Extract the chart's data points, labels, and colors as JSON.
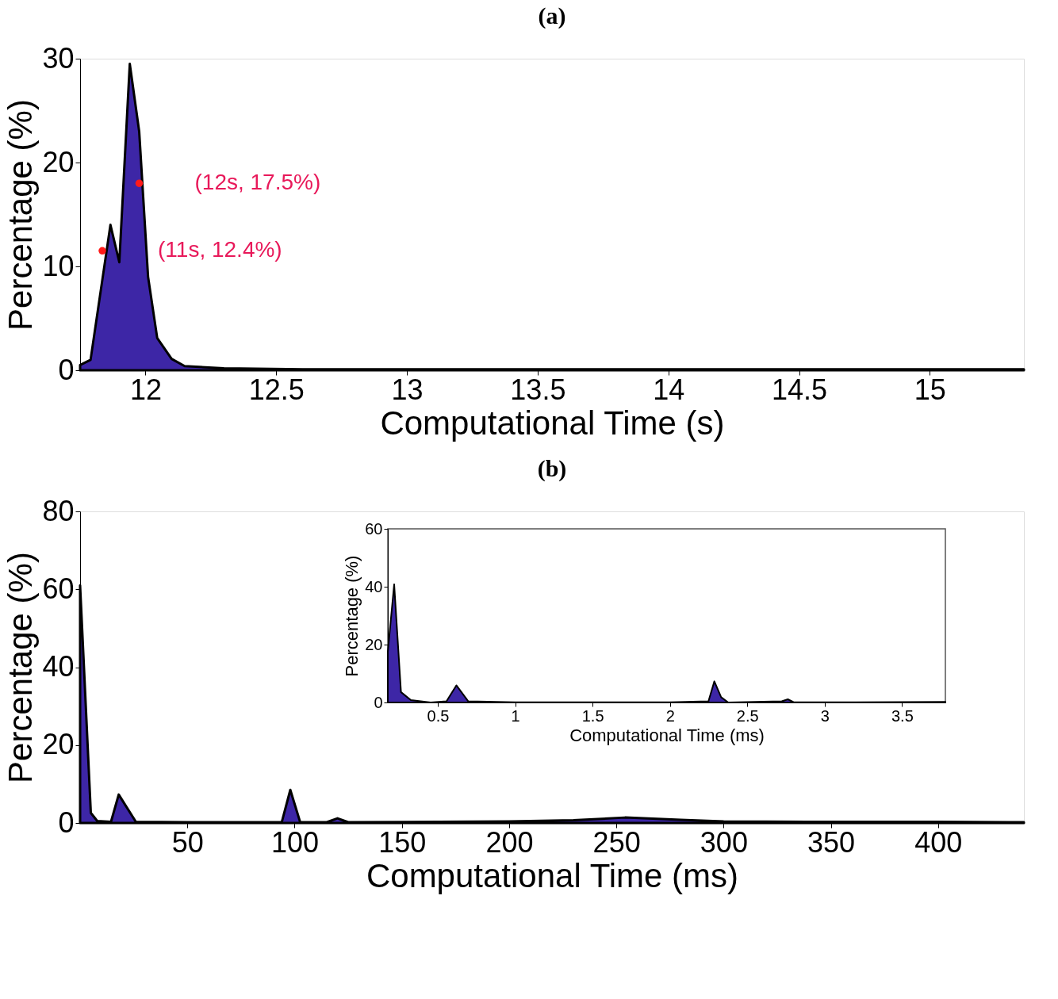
{
  "chart_data": [
    {
      "type": "area",
      "title": "(a)",
      "xlabel": "Computational Time (s)",
      "ylabel": "Percentage (%)",
      "xlim": [
        11.75,
        15.36
      ],
      "ylim": [
        0,
        30
      ],
      "xticks": [
        12,
        12.5,
        13,
        13.5,
        14,
        14.5,
        15
      ],
      "yticks": [
        0,
        10,
        20,
        30
      ],
      "series": [
        {
          "color": "#3d26a6",
          "x": [
            11.75,
            11.79,
            11.866,
            11.9,
            11.94,
            11.976,
            12.01,
            12.045,
            12.1,
            12.15,
            12.3,
            12.6,
            13.0,
            13.5,
            14.0,
            14.5,
            15.0,
            15.36
          ],
          "values": [
            0.5,
            1.0,
            14.0,
            10.4,
            29.5,
            23.0,
            9.0,
            3.1,
            1.1,
            0.4,
            0.2,
            0.1,
            0.1,
            0.1,
            0.1,
            0.1,
            0.1,
            0.1
          ]
        }
      ],
      "annotations": [
        {
          "text": "(12s, 17.5%)",
          "x": 11.976,
          "y": 18.0
        },
        {
          "text": "(11s, 12.4%)",
          "x": 11.835,
          "y": 11.5
        }
      ]
    },
    {
      "type": "area",
      "title": "(b)",
      "xlabel": "Computational Time (ms)",
      "ylabel": "Percentage (%)",
      "xlim": [
        0,
        440
      ],
      "ylim": [
        0,
        80
      ],
      "xticks": [
        50,
        100,
        150,
        200,
        250,
        300,
        350,
        400
      ],
      "yticks": [
        0,
        20,
        40,
        60,
        80
      ],
      "series": [
        {
          "color": "#3d26a6",
          "x": [
            0,
            5,
            8,
            14.4,
            18,
            26,
            50,
            94,
            98,
            102.6,
            115,
            120,
            125,
            200,
            230,
            254,
            280,
            300,
            350,
            400,
            440
          ],
          "values": [
            61,
            2.6,
            0.5,
            0.3,
            7.3,
            0.3,
            0.2,
            0.2,
            8.5,
            0.2,
            0.2,
            1.2,
            0.2,
            0.4,
            0.7,
            1.4,
            0.8,
            0.4,
            0.3,
            0.3,
            0.2
          ]
        }
      ]
    },
    {
      "type": "area",
      "xlabel": "Computational Time (ms)",
      "ylabel": "Percentage (%)",
      "xlim": [
        0.177,
        3.78
      ],
      "ylim": [
        0,
        60
      ],
      "xticks": [
        0.5,
        1,
        1.5,
        2,
        2.5,
        3,
        3.5
      ],
      "yticks": [
        0,
        20,
        40,
        60
      ],
      "series": [
        {
          "color": "#3d26a6",
          "x": [
            0.177,
            0.218,
            0.262,
            0.326,
            0.454,
            0.556,
            0.62,
            0.697,
            1.0,
            1.5,
            2.0,
            2.249,
            2.287,
            2.331,
            2.377,
            2.723,
            2.762,
            2.8,
            3.2,
            3.78
          ],
          "values": [
            17.5,
            40.8,
            3.6,
            0.8,
            0,
            0.4,
            5.9,
            0.4,
            0.1,
            0.1,
            0.1,
            0.4,
            7.3,
            1.8,
            0,
            0.4,
            1.1,
            0.1,
            0.1,
            0.2
          ]
        }
      ]
    }
  ]
}
